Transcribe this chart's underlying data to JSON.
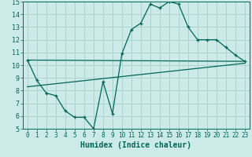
{
  "xlabel": "Humidex (Indice chaleur)",
  "background_color": "#cceae7",
  "grid_color": "#aad4d0",
  "line_color": "#006655",
  "xlim": [
    -0.5,
    23.5
  ],
  "ylim": [
    5,
    15
  ],
  "xticks": [
    0,
    1,
    2,
    3,
    4,
    5,
    6,
    7,
    8,
    9,
    10,
    11,
    12,
    13,
    14,
    15,
    16,
    17,
    18,
    19,
    20,
    21,
    22,
    23
  ],
  "yticks": [
    5,
    6,
    7,
    8,
    9,
    10,
    11,
    12,
    13,
    14,
    15
  ],
  "line1_x": [
    0,
    1,
    2,
    3,
    4,
    5,
    6,
    7,
    8,
    9,
    10,
    11,
    12,
    13,
    14,
    15,
    16,
    17,
    18,
    19,
    20,
    21,
    22,
    23
  ],
  "line1_y": [
    10.4,
    8.8,
    7.8,
    7.6,
    6.4,
    5.9,
    5.9,
    5.0,
    8.7,
    6.2,
    10.9,
    12.8,
    13.3,
    14.8,
    14.5,
    15.0,
    14.8,
    13.0,
    12.0,
    12.0,
    12.0,
    11.4,
    10.8,
    10.3
  ],
  "line2_x": [
    0,
    23
  ],
  "line2_y": [
    10.4,
    10.3
  ],
  "line3_x": [
    0,
    23
  ],
  "line3_y": [
    8.3,
    10.15
  ],
  "fontsize_label": 7,
  "fontsize_tick": 5.5
}
